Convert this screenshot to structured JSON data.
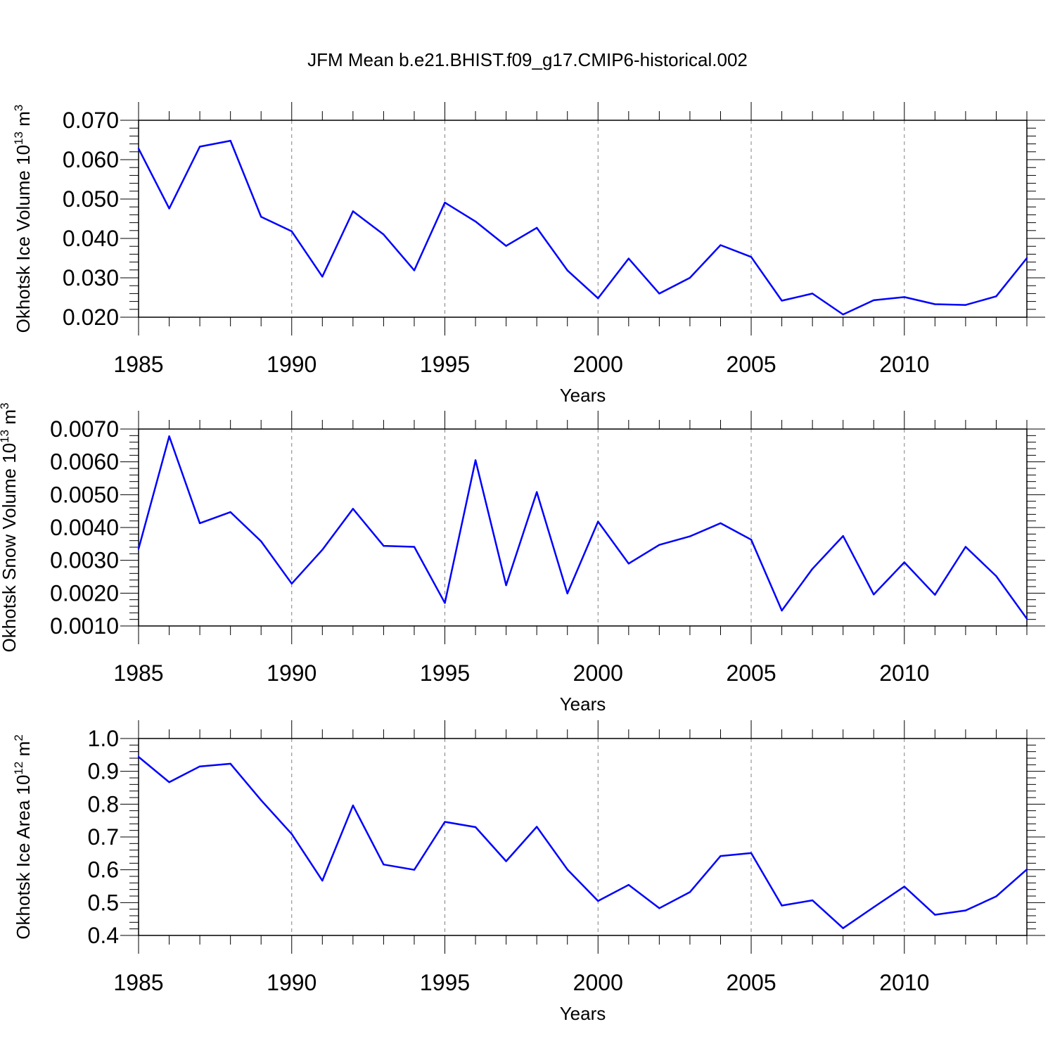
{
  "title": "JFM Mean b.e21.BHIST.f09_g17.CMIP6-historical.002",
  "colors": {
    "line": "#0000ff",
    "axis": "#000000",
    "grid": "#808080"
  },
  "chart_data": [
    {
      "type": "line",
      "ylabel": {
        "main": "Okhotsk Ice Volume 10",
        "sup": "13",
        "unit": " m",
        "unit_sup": "3"
      },
      "xlabel": "Years",
      "xlim": [
        1985,
        2014
      ],
      "ylim": [
        0.02,
        0.07
      ],
      "x_ticks": [
        1985,
        1990,
        1995,
        2000,
        2005,
        2010
      ],
      "x_tick_labels": [
        "1985",
        "1990",
        "1995",
        "2000",
        "2005",
        "2010"
      ],
      "y_ticks": [
        0.02,
        0.03,
        0.04,
        0.05,
        0.06,
        0.07
      ],
      "y_tick_labels": [
        "0.020",
        "0.030",
        "0.040",
        "0.050",
        "0.060",
        "0.070"
      ],
      "grid": "vertical dashed at major x ticks",
      "x": [
        1985,
        1986,
        1987,
        1988,
        1989,
        1990,
        1991,
        1992,
        1993,
        1994,
        1995,
        1996,
        1997,
        1998,
        1999,
        2000,
        2001,
        2002,
        2003,
        2004,
        2005,
        2006,
        2007,
        2008,
        2009,
        2010,
        2011,
        2012,
        2013,
        2014
      ],
      "values": [
        0.0628,
        0.0476,
        0.0633,
        0.0648,
        0.0455,
        0.0418,
        0.0303,
        0.0469,
        0.041,
        0.0319,
        0.0491,
        0.0443,
        0.0381,
        0.0427,
        0.0319,
        0.0248,
        0.0349,
        0.026,
        0.03,
        0.0383,
        0.0353,
        0.0242,
        0.026,
        0.0207,
        0.0243,
        0.0251,
        0.0233,
        0.0231,
        0.0253,
        0.035
      ]
    },
    {
      "type": "line",
      "ylabel": {
        "main": "Okhotsk Snow Volume 10",
        "sup": "13",
        "unit": " m",
        "unit_sup": "3"
      },
      "xlabel": "Years",
      "xlim": [
        1985,
        2014
      ],
      "ylim": [
        0.001,
        0.007
      ],
      "x_ticks": [
        1985,
        1990,
        1995,
        2000,
        2005,
        2010
      ],
      "x_tick_labels": [
        "1985",
        "1990",
        "1995",
        "2000",
        "2005",
        "2010"
      ],
      "y_ticks": [
        0.001,
        0.002,
        0.003,
        0.004,
        0.005,
        0.006,
        0.007
      ],
      "y_tick_labels": [
        "0.0010",
        "0.0020",
        "0.0030",
        "0.0040",
        "0.0050",
        "0.0060",
        "0.0070"
      ],
      "grid": "vertical dashed at major x ticks",
      "x": [
        1985,
        1986,
        1987,
        1988,
        1989,
        1990,
        1991,
        1992,
        1993,
        1994,
        1995,
        1996,
        1997,
        1998,
        1999,
        2000,
        2001,
        2002,
        2003,
        2004,
        2005,
        2006,
        2007,
        2008,
        2009,
        2010,
        2011,
        2012,
        2013,
        2014
      ],
      "values": [
        0.00335,
        0.00678,
        0.00413,
        0.00447,
        0.00358,
        0.00229,
        0.00332,
        0.00457,
        0.00344,
        0.00341,
        0.0017,
        0.00605,
        0.00224,
        0.00508,
        0.00199,
        0.00418,
        0.0029,
        0.00347,
        0.00373,
        0.00413,
        0.00363,
        0.00147,
        0.00274,
        0.00374,
        0.00196,
        0.00294,
        0.00195,
        0.00341,
        0.00252,
        0.00122
      ]
    },
    {
      "type": "line",
      "ylabel": {
        "main": "Okhotsk Ice Area 10",
        "sup": "12",
        "unit": " m",
        "unit_sup": "2"
      },
      "xlabel": "Years",
      "xlim": [
        1985,
        2014
      ],
      "ylim": [
        0.4,
        1.0
      ],
      "x_ticks": [
        1985,
        1990,
        1995,
        2000,
        2005,
        2010
      ],
      "x_tick_labels": [
        "1985",
        "1990",
        "1995",
        "2000",
        "2005",
        "2010"
      ],
      "y_ticks": [
        0.4,
        0.5,
        0.6,
        0.7,
        0.8,
        0.9,
        1.0
      ],
      "y_tick_labels": [
        "0.4",
        "0.5",
        "0.6",
        "0.7",
        "0.8",
        "0.9",
        "1.0"
      ],
      "grid": "vertical dashed at major x ticks",
      "x": [
        1985,
        1986,
        1987,
        1988,
        1989,
        1990,
        1991,
        1992,
        1993,
        1994,
        1995,
        1996,
        1997,
        1998,
        1999,
        2000,
        2001,
        2002,
        2003,
        2004,
        2005,
        2006,
        2007,
        2008,
        2009,
        2010,
        2011,
        2012,
        2013,
        2014
      ],
      "values": [
        0.944,
        0.867,
        0.915,
        0.923,
        0.812,
        0.709,
        0.567,
        0.796,
        0.616,
        0.6,
        0.746,
        0.73,
        0.626,
        0.731,
        0.601,
        0.505,
        0.554,
        0.483,
        0.532,
        0.642,
        0.651,
        0.491,
        0.507,
        0.422,
        0.486,
        0.549,
        0.463,
        0.476,
        0.519,
        0.601
      ]
    }
  ]
}
